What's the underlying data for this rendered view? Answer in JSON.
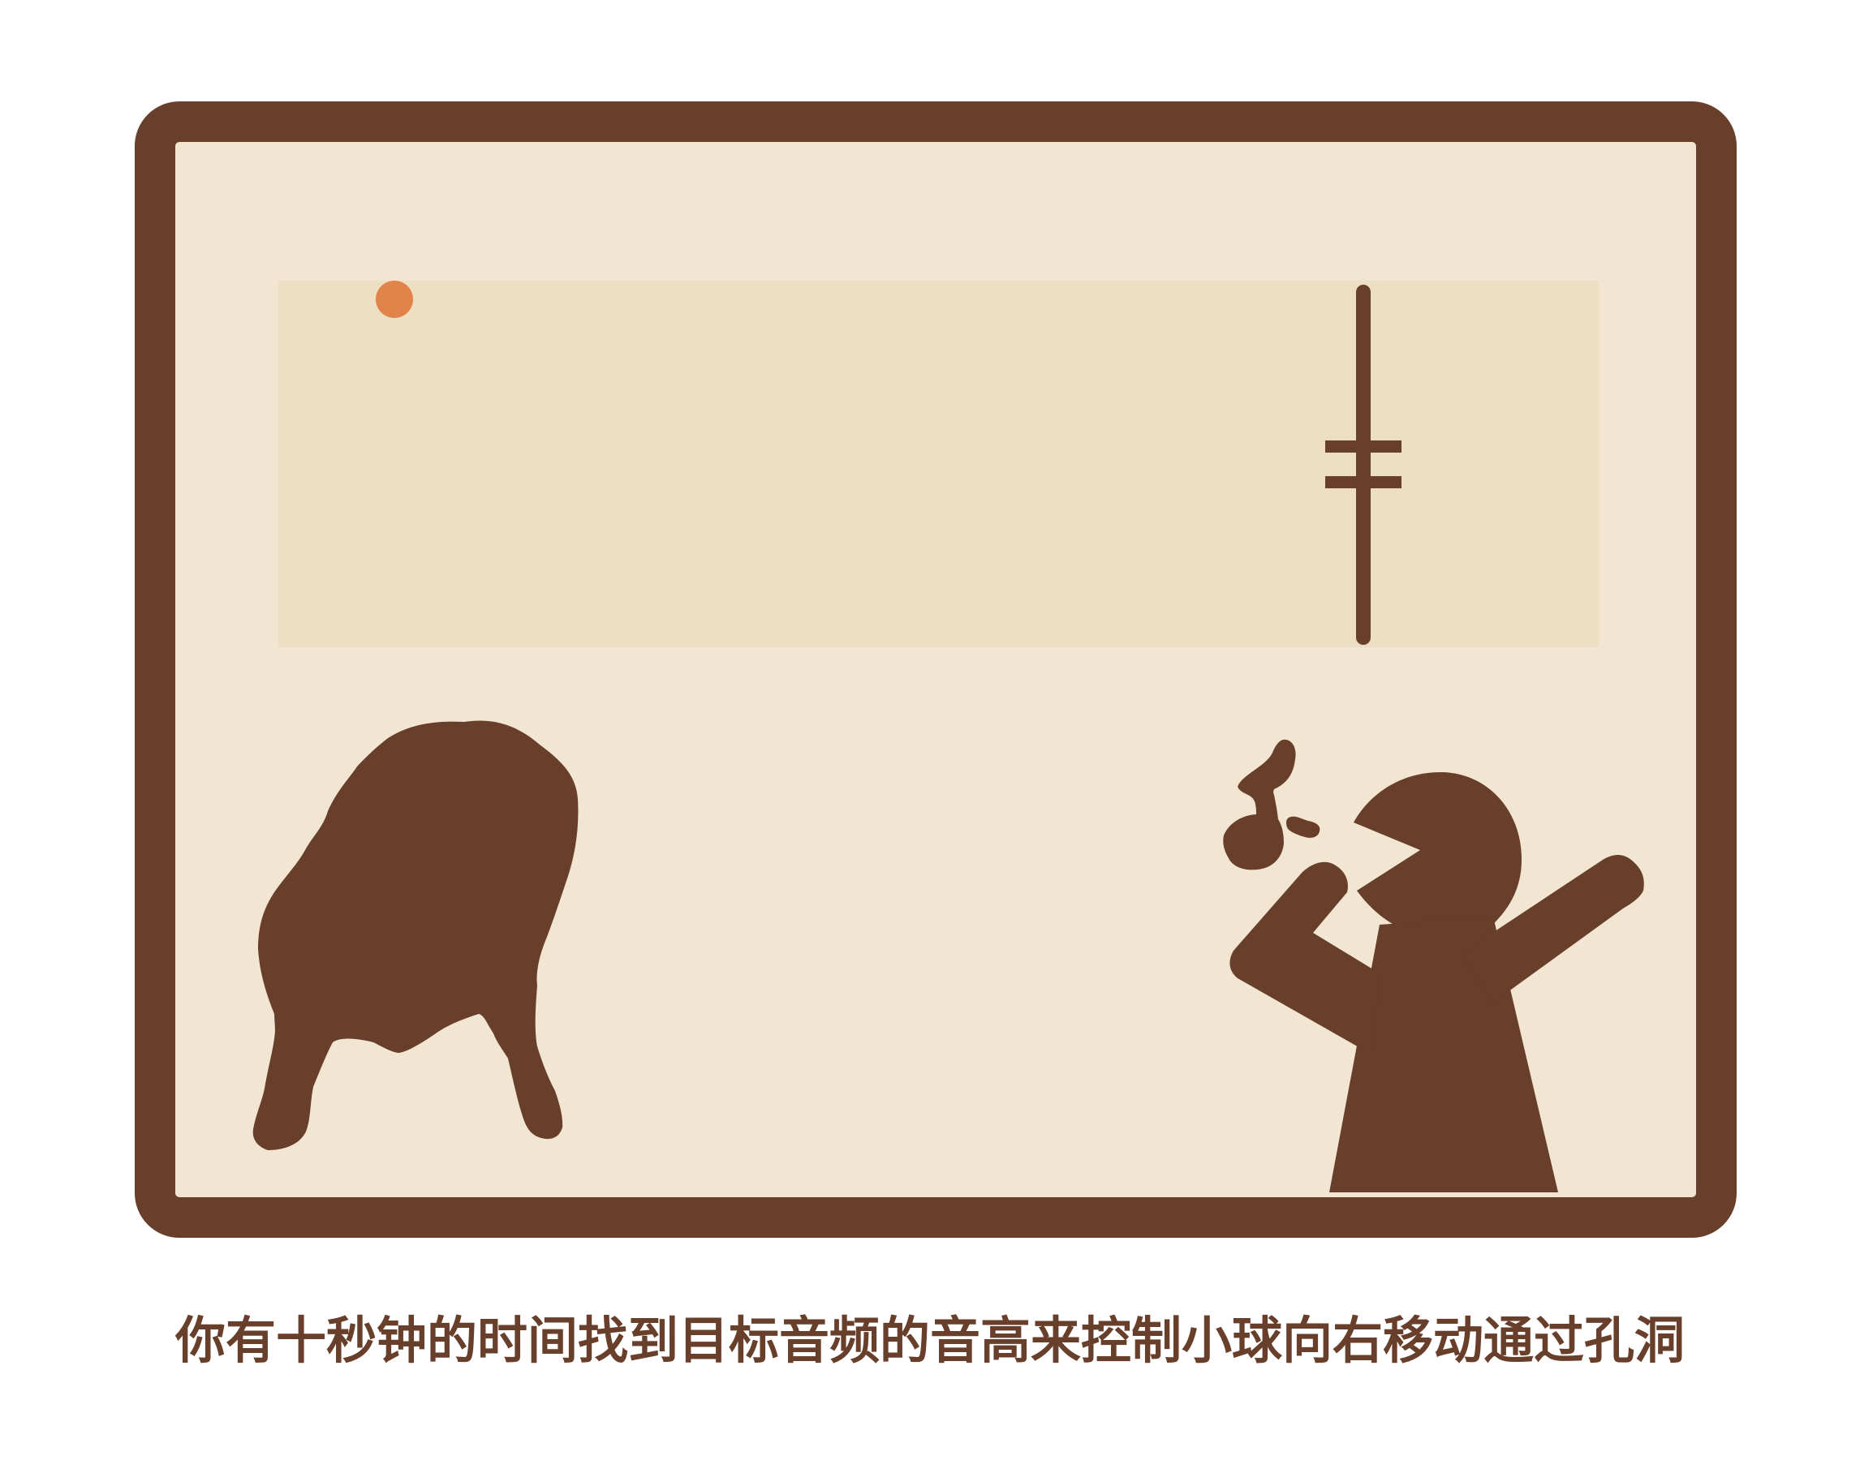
{
  "game": {
    "instruction": "你有十秒钟的时间找到目标音频的音高来控制小球向右移动通过孔洞",
    "ball": {
      "color": "#e1844a"
    },
    "obstacle": {
      "has_hole": true,
      "color": "#683f2b"
    },
    "frame_color": "#683f2b",
    "background_color": "#f2e6d2",
    "play_area_color": "#eedec2",
    "icons": {
      "left_figure": "blob-creature-icon",
      "right_figure": "singing-person-icon",
      "note": "music-note-icon"
    }
  }
}
